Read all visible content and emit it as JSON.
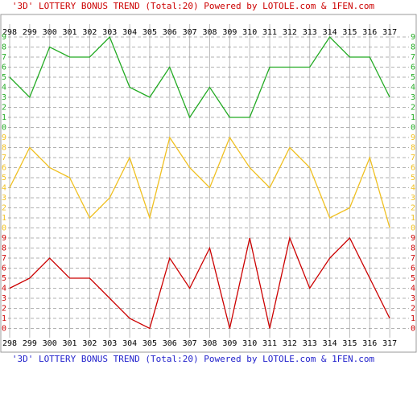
{
  "chart_data": {
    "type": "line",
    "title": "'3D' LOTTERY BONUS TREND (Total:20)  Powered by LOTOLE.com & 1FEN.com",
    "categories": [
      "298",
      "299",
      "300",
      "301",
      "302",
      "303",
      "304",
      "305",
      "306",
      "307",
      "308",
      "309",
      "310",
      "311",
      "312",
      "313",
      "314",
      "315",
      "316",
      "317"
    ],
    "series": [
      {
        "color": "#22aa22",
        "values": [
          5,
          3,
          8,
          7,
          7,
          9,
          4,
          3,
          6,
          1,
          4,
          1,
          1,
          6,
          6,
          6,
          9,
          7,
          7,
          3
        ]
      },
      {
        "color": "#f0c020",
        "values": [
          4,
          8,
          6,
          5,
          1,
          3,
          7,
          1,
          9,
          6,
          4,
          9,
          6,
          4,
          8,
          6,
          1,
          2,
          7,
          0
        ]
      },
      {
        "color": "#cc0000",
        "values": [
          4,
          5,
          7,
          5,
          5,
          3,
          1,
          0,
          7,
          4,
          8,
          0,
          9,
          0,
          9,
          4,
          7,
          9,
          5,
          1
        ]
      }
    ],
    "ylim": [
      0,
      9
    ],
    "yticks": [
      0,
      1,
      2,
      3,
      4,
      5,
      6,
      7,
      8,
      9
    ],
    "grid": true
  }
}
